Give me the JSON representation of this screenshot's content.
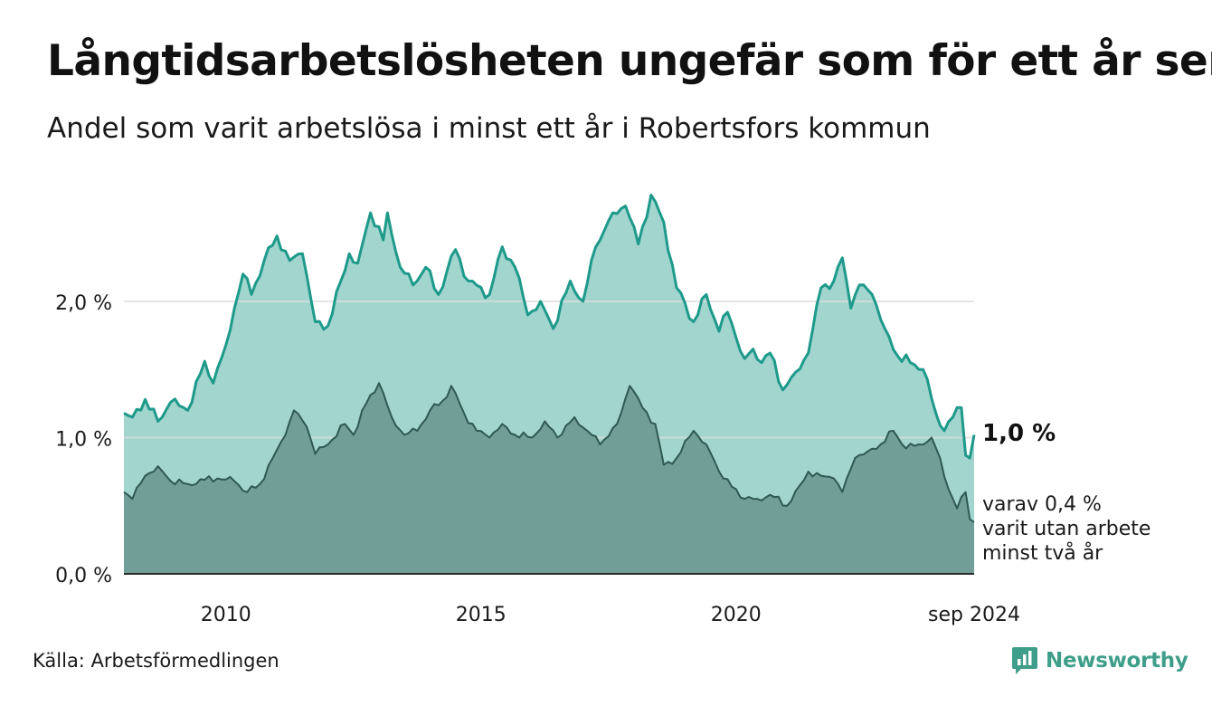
{
  "header": {
    "title": "Långtidsarbetslösheten ungefär som för ett år sen",
    "subtitle": "Andel som varit arbetslösa i minst ett år i Robertsfors kommun"
  },
  "footer": {
    "source": "Källa: Arbetsförmedlingen",
    "brand": "Newsworthy",
    "brand_icon": "bar-chart-logo-icon"
  },
  "colors": {
    "series1_line": "#1e9a8a",
    "series1_fill": "#a3d5cf",
    "series2_line": "#2f5953",
    "series2_fill": "#719e97",
    "grid": "#dddddd",
    "brand": "#3f9e8a"
  },
  "chart_data": {
    "type": "area",
    "y_ticks": [
      {
        "value": 0,
        "label": "0,0 %"
      },
      {
        "value": 1,
        "label": "1,0 %"
      },
      {
        "value": 2,
        "label": "2,0 %"
      }
    ],
    "x_ticks": [
      {
        "value": "2010",
        "label": "2010"
      },
      {
        "value": "2015",
        "label": "2015"
      },
      {
        "value": "2020",
        "label": "2020"
      },
      {
        "value": "2024-09",
        "label": "sep 2024"
      }
    ],
    "ylim": [
      0,
      2.85
    ],
    "xlim": [
      "2008-01",
      "2024-09"
    ],
    "grid": "horizontal",
    "annotations": {
      "last_value": "1,0 %",
      "second_series": [
        "varav 0,4 %",
        "varit utan arbete",
        "minst två år"
      ]
    },
    "series": [
      {
        "keyframes": [
          [
            "2008-01",
            1.18
          ],
          [
            "2008-03",
            1.15
          ],
          [
            "2008-06",
            1.28
          ],
          [
            "2008-09",
            1.12
          ],
          [
            "2008-12",
            1.26
          ],
          [
            "2009-04",
            1.2
          ],
          [
            "2009-08",
            1.56
          ],
          [
            "2009-10",
            1.4
          ],
          [
            "2010-01",
            1.68
          ],
          [
            "2010-03",
            1.95
          ],
          [
            "2010-05",
            2.2
          ],
          [
            "2010-07",
            2.05
          ],
          [
            "2010-10",
            2.3
          ],
          [
            "2011-01",
            2.48
          ],
          [
            "2011-04",
            2.3
          ],
          [
            "2011-07",
            2.35
          ],
          [
            "2011-10",
            1.85
          ],
          [
            "2012-01",
            1.82
          ],
          [
            "2012-06",
            2.35
          ],
          [
            "2012-08",
            2.28
          ],
          [
            "2012-11",
            2.65
          ],
          [
            "2013-02",
            2.45
          ],
          [
            "2013-03",
            2.65
          ],
          [
            "2013-06",
            2.25
          ],
          [
            "2013-09",
            2.12
          ],
          [
            "2013-12",
            2.25
          ],
          [
            "2014-03",
            2.05
          ],
          [
            "2014-07",
            2.38
          ],
          [
            "2014-10",
            2.15
          ],
          [
            "2015-03",
            2.05
          ],
          [
            "2015-06",
            2.4
          ],
          [
            "2015-09",
            2.25
          ],
          [
            "2015-12",
            1.9
          ],
          [
            "2016-03",
            2.0
          ],
          [
            "2016-06",
            1.8
          ],
          [
            "2016-10",
            2.15
          ],
          [
            "2017-01",
            2.0
          ],
          [
            "2017-04",
            2.4
          ],
          [
            "2017-08",
            2.65
          ],
          [
            "2017-11",
            2.7
          ],
          [
            "2018-02",
            2.42
          ],
          [
            "2018-05",
            2.78
          ],
          [
            "2018-08",
            2.58
          ],
          [
            "2018-11",
            2.1
          ],
          [
            "2019-03",
            1.85
          ],
          [
            "2019-06",
            2.05
          ],
          [
            "2019-09",
            1.78
          ],
          [
            "2019-11",
            1.92
          ],
          [
            "2020-03",
            1.58
          ],
          [
            "2020-05",
            1.65
          ],
          [
            "2020-07",
            1.55
          ],
          [
            "2020-09",
            1.62
          ],
          [
            "2020-12",
            1.35
          ],
          [
            "2021-03",
            1.48
          ],
          [
            "2021-06",
            1.62
          ],
          [
            "2021-09",
            2.1
          ],
          [
            "2021-12",
            2.15
          ],
          [
            "2022-02",
            2.32
          ],
          [
            "2022-04",
            1.95
          ],
          [
            "2022-06",
            2.12
          ],
          [
            "2022-09",
            2.05
          ],
          [
            "2022-12",
            1.8
          ],
          [
            "2023-03",
            1.6
          ],
          [
            "2023-06",
            1.55
          ],
          [
            "2023-09",
            1.5
          ],
          [
            "2023-12",
            1.18
          ],
          [
            "2024-02",
            1.05
          ],
          [
            "2024-04",
            1.15
          ],
          [
            "2024-06",
            1.22
          ],
          [
            "2024-07",
            0.87
          ],
          [
            "2024-08",
            0.85
          ],
          [
            "2024-09",
            1.02
          ]
        ]
      },
      {
        "keyframes": [
          [
            "2008-01",
            0.6
          ],
          [
            "2008-03",
            0.55
          ],
          [
            "2008-06",
            0.72
          ],
          [
            "2008-09",
            0.79
          ],
          [
            "2008-12",
            0.68
          ],
          [
            "2009-04",
            0.66
          ],
          [
            "2009-08",
            0.69
          ],
          [
            "2009-11",
            0.7
          ],
          [
            "2010-03",
            0.68
          ],
          [
            "2010-06",
            0.6
          ],
          [
            "2010-09",
            0.66
          ],
          [
            "2010-12",
            0.85
          ],
          [
            "2011-03",
            1.02
          ],
          [
            "2011-05",
            1.2
          ],
          [
            "2011-08",
            1.08
          ],
          [
            "2011-10",
            0.88
          ],
          [
            "2012-01",
            0.95
          ],
          [
            "2012-05",
            1.1
          ],
          [
            "2012-07",
            1.02
          ],
          [
            "2012-10",
            1.25
          ],
          [
            "2013-01",
            1.4
          ],
          [
            "2013-04",
            1.15
          ],
          [
            "2013-07",
            1.02
          ],
          [
            "2013-10",
            1.05
          ],
          [
            "2014-01",
            1.2
          ],
          [
            "2014-04",
            1.27
          ],
          [
            "2014-06",
            1.38
          ],
          [
            "2014-09",
            1.18
          ],
          [
            "2014-12",
            1.05
          ],
          [
            "2015-03",
            1.0
          ],
          [
            "2015-06",
            1.1
          ],
          [
            "2015-09",
            1.02
          ],
          [
            "2016-01",
            1.0
          ],
          [
            "2016-04",
            1.12
          ],
          [
            "2016-07",
            1.0
          ],
          [
            "2016-11",
            1.15
          ],
          [
            "2017-02",
            1.05
          ],
          [
            "2017-05",
            0.95
          ],
          [
            "2017-09",
            1.1
          ],
          [
            "2017-12",
            1.38
          ],
          [
            "2018-03",
            1.22
          ],
          [
            "2018-06",
            1.1
          ],
          [
            "2018-08",
            0.8
          ],
          [
            "2018-11",
            0.85
          ],
          [
            "2019-03",
            1.05
          ],
          [
            "2019-06",
            0.95
          ],
          [
            "2019-10",
            0.7
          ],
          [
            "2020-03",
            0.55
          ],
          [
            "2020-06",
            0.55
          ],
          [
            "2020-09",
            0.58
          ],
          [
            "2021-01",
            0.5
          ],
          [
            "2021-04",
            0.65
          ],
          [
            "2021-06",
            0.75
          ],
          [
            "2021-09",
            0.72
          ],
          [
            "2021-12",
            0.7
          ],
          [
            "2022-02",
            0.6
          ],
          [
            "2022-05",
            0.85
          ],
          [
            "2022-08",
            0.9
          ],
          [
            "2022-11",
            0.95
          ],
          [
            "2023-02",
            1.05
          ],
          [
            "2023-05",
            0.92
          ],
          [
            "2023-08",
            0.95
          ],
          [
            "2023-11",
            1.0
          ],
          [
            "2024-01",
            0.85
          ],
          [
            "2024-03",
            0.62
          ],
          [
            "2024-05",
            0.48
          ],
          [
            "2024-07",
            0.6
          ],
          [
            "2024-08",
            0.4
          ],
          [
            "2024-09",
            0.38
          ]
        ]
      }
    ]
  }
}
